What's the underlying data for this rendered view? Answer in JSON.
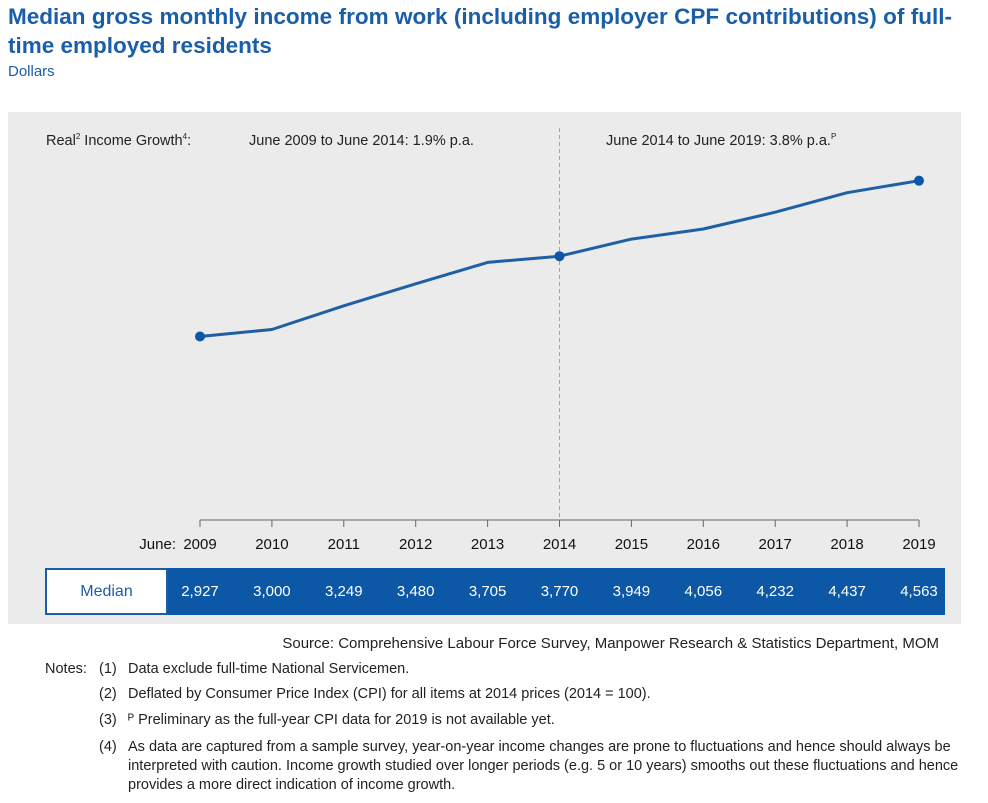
{
  "title": "Median gross monthly income from work (including employer CPF contributions) of full-time employed residents",
  "subtitle": "Dollars",
  "growth": {
    "label": "Real",
    "label_sup": "2",
    "label_rest": " Income Growth",
    "label_sup2": "4",
    "label_colon": ":",
    "period1": "June 2009 to June 2014: 1.9% p.a.",
    "period2": "June 2014 to June 2019: 3.8% p.a.",
    "period2_sup": "P"
  },
  "colors": {
    "accent": "#1b5ea8",
    "line": "#1f5fa6",
    "cells": "#0c57a6",
    "panel": "#ebebeb"
  },
  "chart_data": {
    "type": "line",
    "x_prefix": "June:",
    "categories": [
      "2009",
      "2010",
      "2011",
      "2012",
      "2013",
      "2014",
      "2015",
      "2016",
      "2017",
      "2018",
      "2019"
    ],
    "series": [
      {
        "name": "Median",
        "values": [
          2927,
          3000,
          3249,
          3480,
          3705,
          3770,
          3949,
          4056,
          4232,
          4437,
          4563
        ]
      }
    ],
    "value_labels": [
      "2,927",
      "3,000",
      "3,249",
      "3,480",
      "3,705",
      "3,770",
      "3,949",
      "4,056",
      "4,232",
      "4,437",
      "4,563"
    ],
    "highlighted_points": [
      "2009",
      "2014",
      "2019"
    ],
    "divider_at": "2014",
    "ylim": [
      1000,
      5200
    ],
    "grid": false
  },
  "source": "Source: Comprehensive Labour Force Survey, Manpower Research & Statistics Department, MOM",
  "notes": {
    "heading": "Notes:",
    "items": [
      {
        "num": "(1)",
        "text": "Data exclude full-time National Servicemen."
      },
      {
        "num": "(2)",
        "text": "Deflated by Consumer Price Index (CPI) for all items at 2014 prices (2014 = 100)."
      },
      {
        "num": "(3)",
        "text": "ᴾ Preliminary as the full-year CPI data for 2019 is not available yet."
      },
      {
        "num": "(4)",
        "text": "As data are captured from a sample survey, year-on-year income changes are prone to fluctuations and hence should always be interpreted with caution. Income growth studied over longer periods (e.g. 5 or 10 years) smooths out these fluctuations and hence provides a more direct indication of income growth."
      }
    ]
  }
}
